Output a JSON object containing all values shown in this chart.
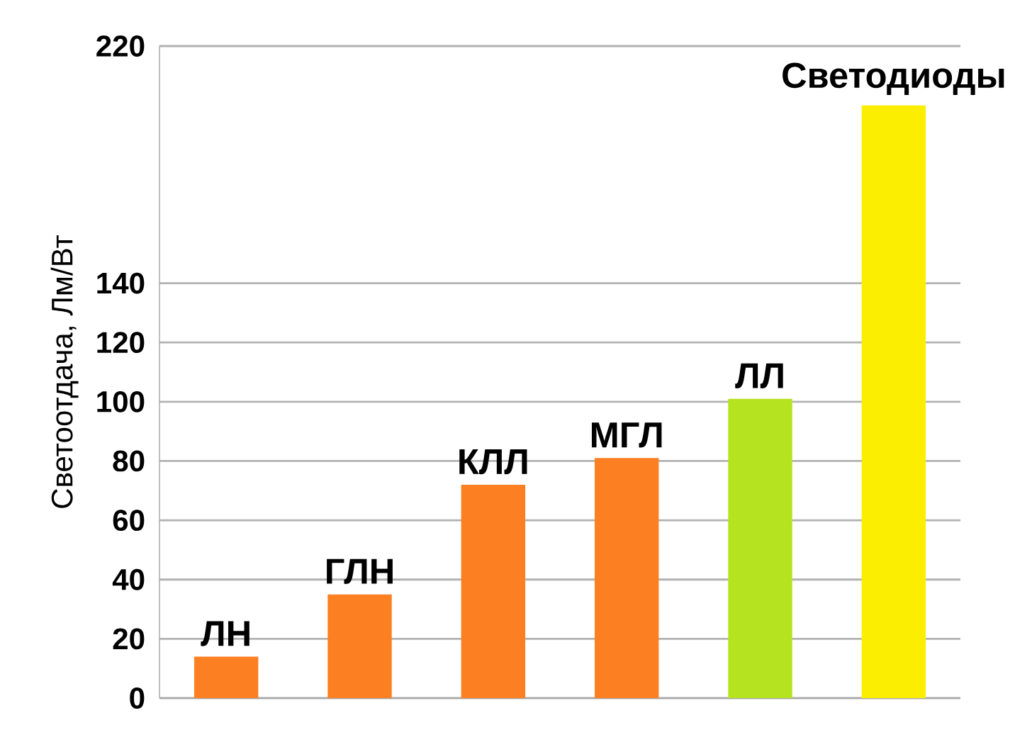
{
  "chart_data": {
    "type": "bar",
    "ylabel": "Светоотдача, Лм/Вт",
    "categories": [
      "ЛН",
      "ГЛН",
      "КЛЛ",
      "МГЛ",
      "ЛЛ",
      "Светодиоды"
    ],
    "values": [
      14,
      35,
      72,
      81,
      101,
      200
    ],
    "colors": [
      "#fc7f22",
      "#fc7f22",
      "#fc7f22",
      "#fc7f22",
      "#b5e31f",
      "#fcee00"
    ],
    "ylim": [
      0,
      220
    ],
    "yticks": [
      0,
      20,
      40,
      60,
      80,
      100,
      120,
      140,
      220
    ],
    "grid": "y",
    "tick_labels": "y"
  }
}
